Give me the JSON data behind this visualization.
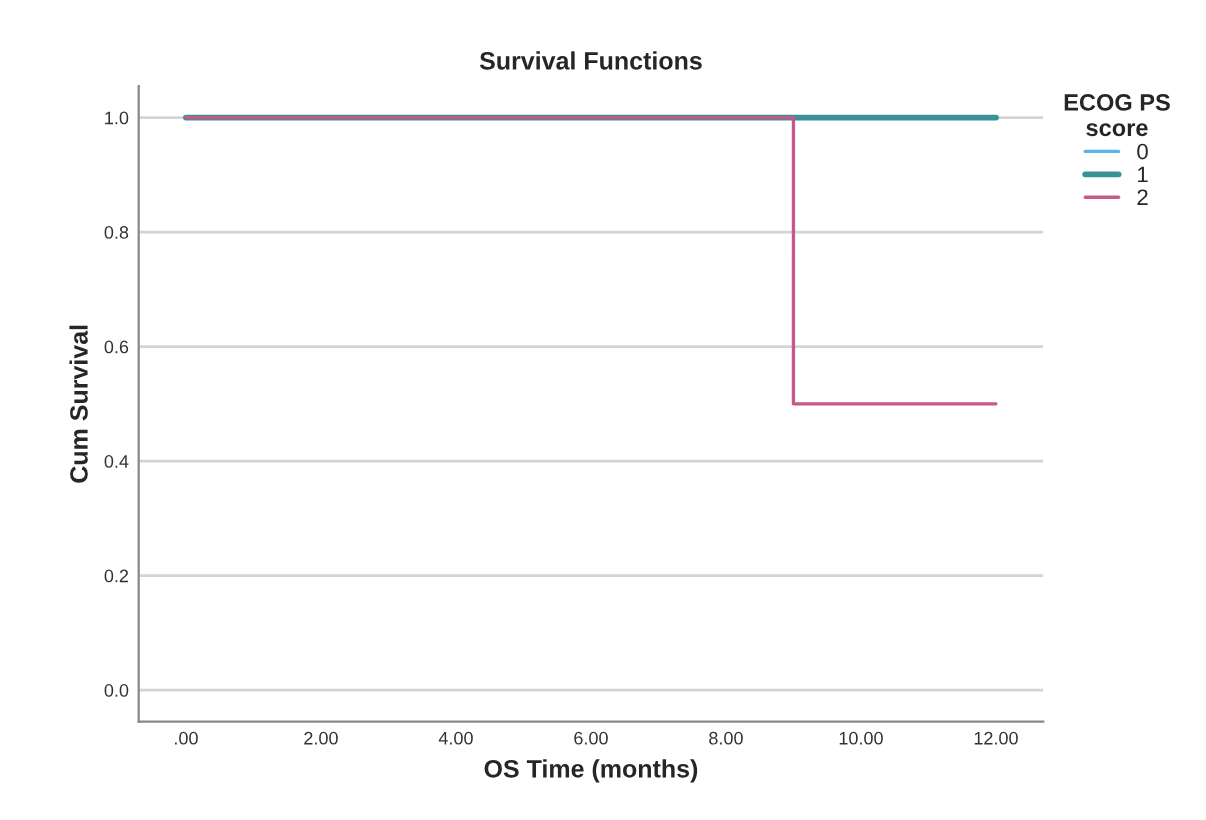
{
  "chart_data": {
    "type": "step",
    "title": "Survival Functions",
    "xlabel": "OS Time (months)",
    "ylabel": "Cum Survival",
    "legend_title": "ECOG PS\nscore",
    "series": [
      {
        "name": "0",
        "color": "#5ab4e5"
      },
      {
        "name": "1",
        "color": "#3a9196",
        "x": [
          0,
          12
        ],
        "values": [
          1.0,
          1.0
        ]
      },
      {
        "name": "2",
        "color": "#c8578a",
        "x": [
          0,
          9,
          12
        ],
        "values": [
          1.0,
          0.5,
          0.5
        ]
      }
    ],
    "xlim": [
      -0.7,
      12.7
    ],
    "xticks": [
      {
        "value": 0,
        "label": ".00"
      },
      {
        "value": 2,
        "label": "2.00"
      },
      {
        "value": 4,
        "label": "4.00"
      },
      {
        "value": 6,
        "label": "6.00"
      },
      {
        "value": 8,
        "label": "8.00"
      },
      {
        "value": 10,
        "label": "10.00"
      },
      {
        "value": 12,
        "label": "12.00"
      }
    ],
    "ylim": [
      -0.055,
      1.055
    ],
    "yticks": [
      {
        "value": 0,
        "label": "0.0"
      },
      {
        "value": 0.2,
        "label": "0.2"
      },
      {
        "value": 0.4,
        "label": "0.4"
      },
      {
        "value": 0.6,
        "label": "0.6"
      },
      {
        "value": 0.8,
        "label": "0.8"
      },
      {
        "value": 1,
        "label": "1.0"
      }
    ],
    "grid": "y",
    "legend": "top right"
  }
}
